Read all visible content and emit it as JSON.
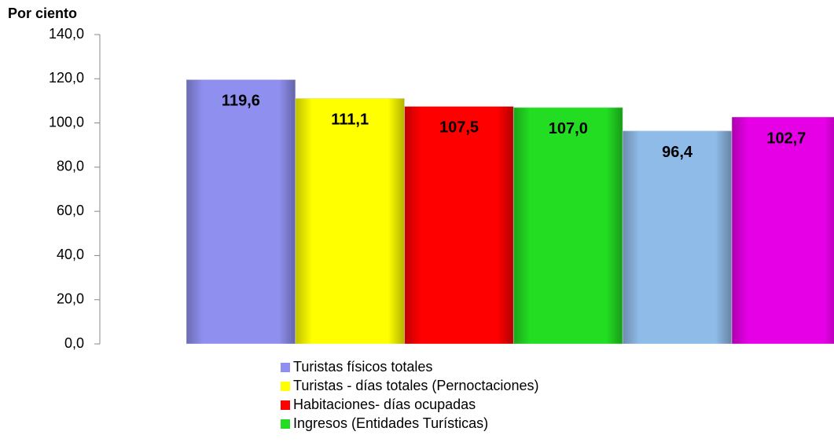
{
  "chart_data": {
    "type": "bar",
    "y_label": "Por ciento",
    "ylim": [
      0,
      140
    ],
    "yticks": [
      {
        "value": 0,
        "label": "0,0"
      },
      {
        "value": 20,
        "label": "20,0"
      },
      {
        "value": 40,
        "label": "40,0"
      },
      {
        "value": 60,
        "label": "60,0"
      },
      {
        "value": 80,
        "label": "80,0"
      },
      {
        "value": 100,
        "label": "100,0"
      },
      {
        "value": 120,
        "label": "120,0"
      },
      {
        "value": 140,
        "label": "140,0"
      }
    ],
    "series": [
      {
        "name": "Turistas físicos totales",
        "color": "#8f8fef",
        "values": [
          119.6
        ],
        "value_labels": [
          "119,6"
        ]
      },
      {
        "name": "Turistas - días totales (Pernoctaciones)",
        "color": "#ffff00",
        "values": [
          111.1
        ],
        "value_labels": [
          "111,1"
        ]
      },
      {
        "name": "Habitaciones- días ocupadas",
        "color": "#ff0000",
        "values": [
          107.5
        ],
        "value_labels": [
          "107,5"
        ]
      },
      {
        "name": "Ingresos (Entidades Turísticas)",
        "color": "#22dd22",
        "values": [
          107.0
        ],
        "value_labels": [
          "107,0"
        ]
      },
      {
        "color": "#8fbbe8",
        "values": [
          96.4
        ],
        "value_labels": [
          "96,4"
        ]
      },
      {
        "color": "#e600e6",
        "values": [
          102.7
        ],
        "value_labels": [
          "102,7"
        ]
      }
    ]
  }
}
